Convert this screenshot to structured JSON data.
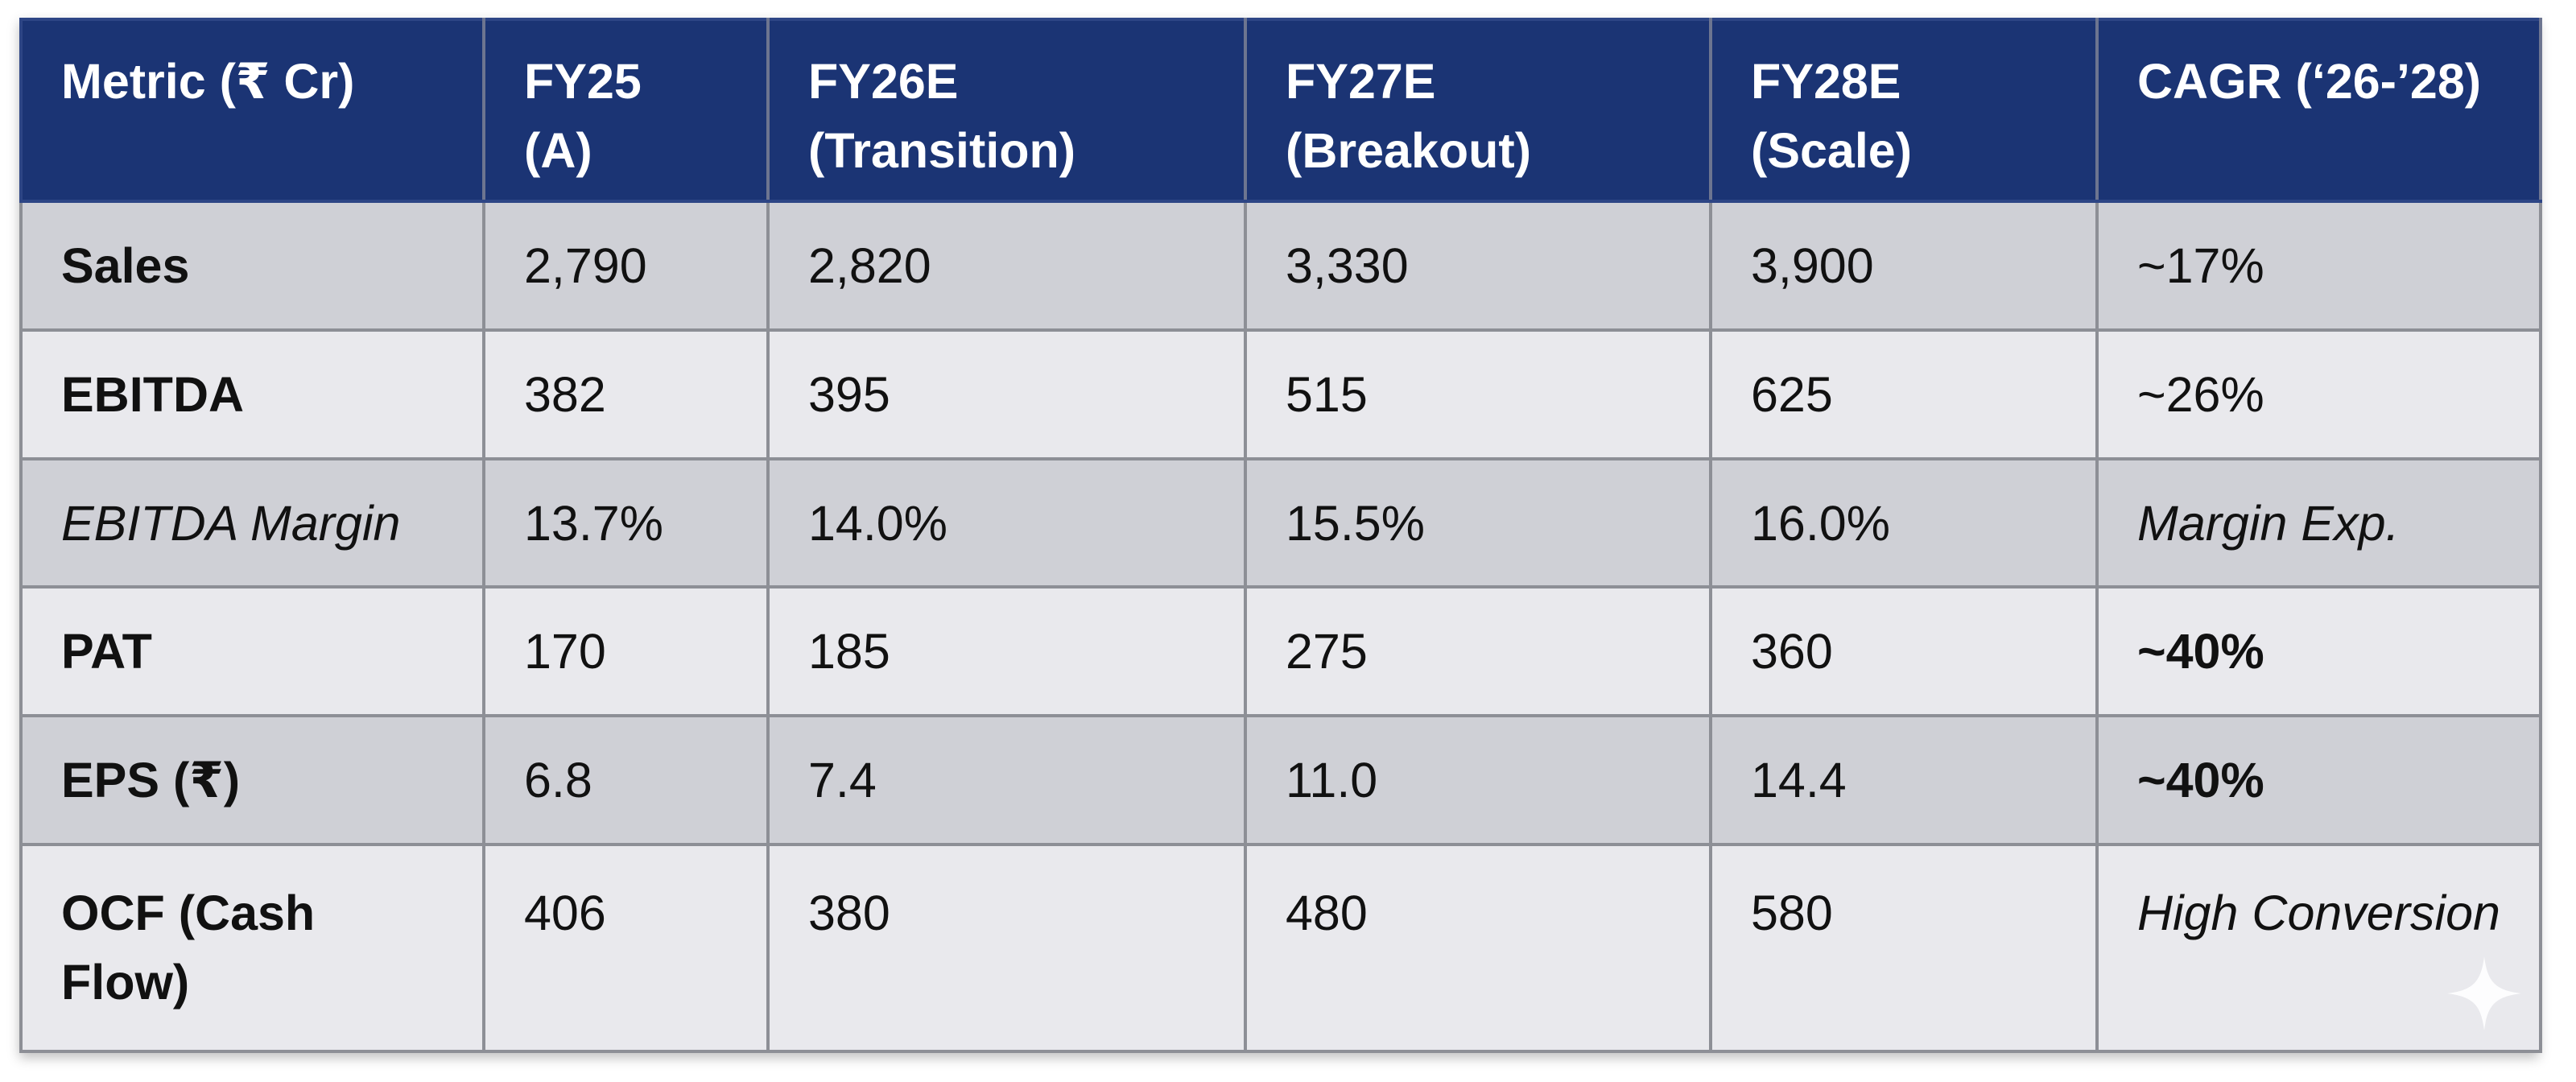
{
  "header": [
    "Metric (₹ Cr)",
    "FY25\n(A)",
    "FY26E\n(Transition)",
    "FY27E\n(Breakout)",
    "FY28E\n(Scale)",
    "CAGR (‘26-’28)"
  ],
  "rows": [
    {
      "metric": "Sales",
      "fy25": "2,790",
      "fy26e": "2,820",
      "fy27e": "3,330",
      "fy28e": "3,900",
      "cagr": "~17%"
    },
    {
      "metric": "EBITDA",
      "fy25": "382",
      "fy26e": "395",
      "fy27e": "515",
      "fy28e": "625",
      "cagr": "~26%"
    },
    {
      "metric": "EBITDA Margin",
      "fy25": "13.7%",
      "fy26e": "14.0%",
      "fy27e": "15.5%",
      "fy28e": "16.0%",
      "cagr": "Margin Exp."
    },
    {
      "metric": "PAT",
      "fy25": "170",
      "fy26e": "185",
      "fy27e": "275",
      "fy28e": "360",
      "cagr": "~40%"
    },
    {
      "metric": "EPS (₹)",
      "fy25": "6.8",
      "fy26e": "7.4",
      "fy27e": "11.0",
      "fy28e": "14.4",
      "cagr": "~40%"
    },
    {
      "metric": "OCF (Cash Flow)",
      "fy25": "406",
      "fy26e": "380",
      "fy27e": "480",
      "fy28e": "580",
      "cagr": "High Conversion"
    }
  ],
  "colors": {
    "header_bg": "#1b3474",
    "row_shade": "#cfd0d6",
    "row_light": "#e9e9ed",
    "border": "#8d8f96"
  },
  "watermark_icon": "sparkle-icon"
}
